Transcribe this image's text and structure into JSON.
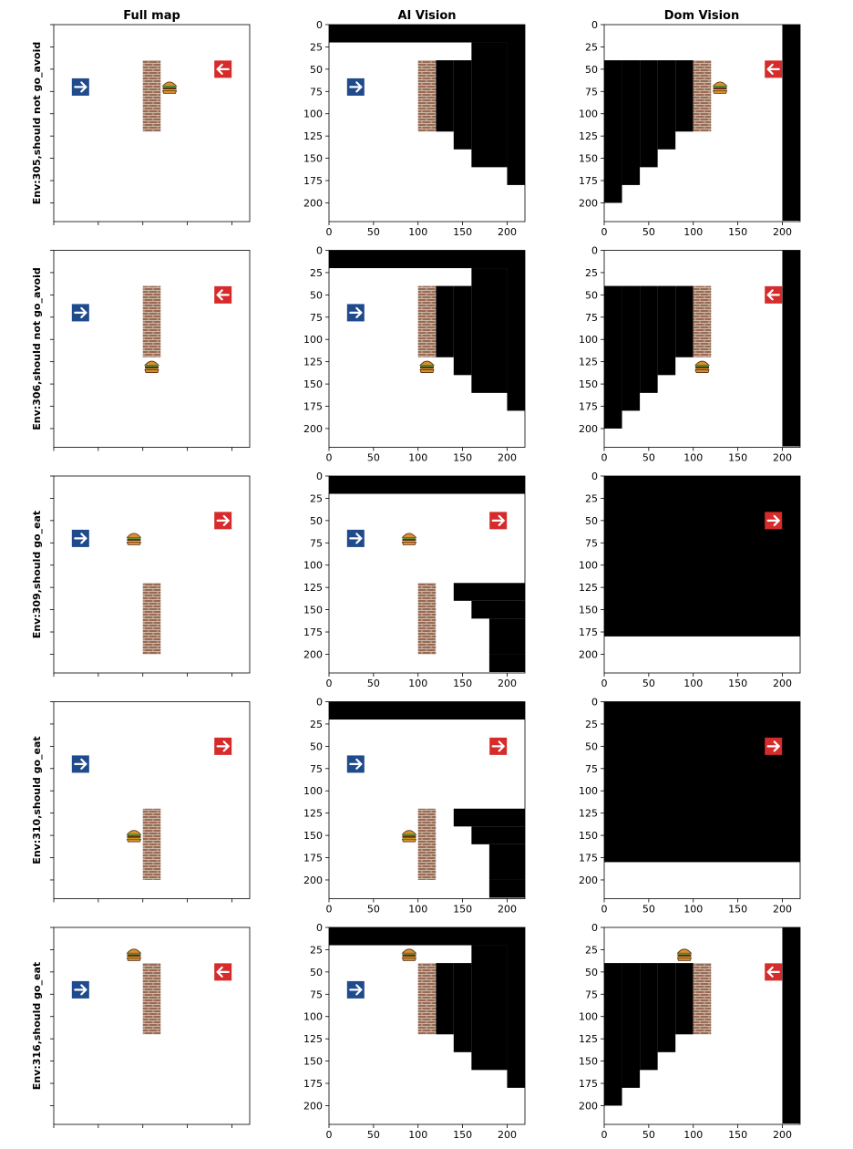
{
  "column_titles": [
    "Full map",
    "AI Vision",
    "Dom Vision"
  ],
  "colors": {
    "blocked": "#000000",
    "background": "#ffffff",
    "blue_arrow": "#1f4a8c",
    "red_arrow": "#d62b2b",
    "brick": "#9b6a55",
    "burger_bun": "#d9902e",
    "burger_patty": "#6b2a16"
  },
  "icons": {
    "blue_agent": "arrow-right-icon",
    "red_agent": "arrow-direction-icon",
    "food": "burger-icon",
    "wall": "brick-wall"
  },
  "chart_data": {
    "type": "heatmap",
    "grid_cell_units": 20,
    "axis": {
      "xlim": [
        0,
        220
      ],
      "ylim": [
        220,
        0
      ],
      "xticks": [
        0,
        50,
        100,
        150,
        200
      ],
      "yticks": [
        0,
        25,
        50,
        75,
        100,
        125,
        150,
        175,
        200
      ],
      "full_map_ticks_labeled": false
    },
    "rows": [
      {
        "label": "Env:305,should not go_avoid",
        "wall": {
          "x": [
            100,
            120
          ],
          "y": [
            40,
            120
          ]
        },
        "food": {
          "x": 130,
          "y": 70
        },
        "blue_agent": {
          "x": 30,
          "y": 70,
          "direction": "right"
        },
        "red_agent": {
          "x": 190,
          "y": 50,
          "direction": "left"
        },
        "ai_mask": [
          [
            0,
            220,
            0,
            20
          ],
          [
            120,
            140,
            40,
            120
          ],
          [
            140,
            160,
            40,
            140
          ],
          [
            160,
            200,
            20,
            160
          ],
          [
            200,
            220,
            0,
            180
          ]
        ],
        "dom_mask": [
          [
            0,
            20,
            40,
            200
          ],
          [
            20,
            40,
            40,
            180
          ],
          [
            40,
            60,
            40,
            160
          ],
          [
            60,
            80,
            40,
            140
          ],
          [
            80,
            100,
            40,
            120
          ],
          [
            200,
            220,
            0,
            220
          ]
        ],
        "ai_items": [
          "wall",
          "blue_agent"
        ],
        "dom_items": [
          "wall",
          "food",
          "red_agent"
        ]
      },
      {
        "label": "Env:306,should not go_avoid",
        "wall": {
          "x": [
            100,
            120
          ],
          "y": [
            40,
            120
          ]
        },
        "food": {
          "x": 110,
          "y": 130
        },
        "blue_agent": {
          "x": 30,
          "y": 70,
          "direction": "right"
        },
        "red_agent": {
          "x": 190,
          "y": 50,
          "direction": "left"
        },
        "ai_mask": [
          [
            0,
            220,
            0,
            20
          ],
          [
            120,
            140,
            40,
            120
          ],
          [
            140,
            160,
            40,
            140
          ],
          [
            160,
            200,
            20,
            160
          ],
          [
            200,
            220,
            0,
            180
          ]
        ],
        "dom_mask": [
          [
            0,
            20,
            40,
            200
          ],
          [
            20,
            40,
            40,
            180
          ],
          [
            40,
            60,
            40,
            160
          ],
          [
            60,
            80,
            40,
            140
          ],
          [
            80,
            100,
            40,
            120
          ],
          [
            200,
            220,
            0,
            220
          ]
        ],
        "ai_items": [
          "wall",
          "food",
          "blue_agent"
        ],
        "dom_items": [
          "wall",
          "food",
          "red_agent"
        ]
      },
      {
        "label": "Env:309,should go_eat",
        "wall": {
          "x": [
            100,
            120
          ],
          "y": [
            120,
            200
          ]
        },
        "food": {
          "x": 90,
          "y": 70
        },
        "blue_agent": {
          "x": 30,
          "y": 70,
          "direction": "right"
        },
        "red_agent": {
          "x": 190,
          "y": 50,
          "direction": "right"
        },
        "ai_mask": [
          [
            0,
            220,
            0,
            20
          ],
          [
            140,
            220,
            120,
            140
          ],
          [
            160,
            220,
            140,
            160
          ],
          [
            180,
            220,
            160,
            200
          ],
          [
            180,
            220,
            200,
            220
          ]
        ],
        "dom_mask": [
          [
            0,
            220,
            0,
            180
          ]
        ],
        "ai_items": [
          "wall",
          "food",
          "blue_agent",
          "red_agent"
        ],
        "dom_items": [
          "red_agent"
        ]
      },
      {
        "label": "Env:310,should go_eat",
        "wall": {
          "x": [
            100,
            120
          ],
          "y": [
            120,
            200
          ]
        },
        "food": {
          "x": 90,
          "y": 150
        },
        "blue_agent": {
          "x": 30,
          "y": 70,
          "direction": "right"
        },
        "red_agent": {
          "x": 190,
          "y": 50,
          "direction": "right"
        },
        "ai_mask": [
          [
            0,
            220,
            0,
            20
          ],
          [
            140,
            220,
            120,
            140
          ],
          [
            160,
            220,
            140,
            160
          ],
          [
            180,
            220,
            160,
            200
          ],
          [
            180,
            220,
            200,
            220
          ]
        ],
        "dom_mask": [
          [
            0,
            220,
            0,
            180
          ]
        ],
        "ai_items": [
          "wall",
          "food",
          "blue_agent",
          "red_agent"
        ],
        "dom_items": [
          "red_agent"
        ]
      },
      {
        "label": "Env:316,should go_eat",
        "wall": {
          "x": [
            100,
            120
          ],
          "y": [
            40,
            120
          ]
        },
        "food": {
          "x": 90,
          "y": 30
        },
        "blue_agent": {
          "x": 30,
          "y": 70,
          "direction": "right"
        },
        "red_agent": {
          "x": 190,
          "y": 50,
          "direction": "left"
        },
        "ai_mask": [
          [
            0,
            220,
            0,
            20
          ],
          [
            120,
            140,
            40,
            120
          ],
          [
            140,
            160,
            40,
            140
          ],
          [
            160,
            200,
            20,
            160
          ],
          [
            200,
            220,
            0,
            180
          ]
        ],
        "dom_mask": [
          [
            0,
            20,
            40,
            200
          ],
          [
            20,
            40,
            40,
            180
          ],
          [
            40,
            60,
            40,
            160
          ],
          [
            60,
            80,
            40,
            140
          ],
          [
            80,
            100,
            40,
            120
          ],
          [
            200,
            220,
            0,
            220
          ]
        ],
        "ai_items": [
          "wall",
          "food",
          "blue_agent"
        ],
        "dom_items": [
          "wall",
          "food",
          "red_agent"
        ]
      }
    ]
  }
}
